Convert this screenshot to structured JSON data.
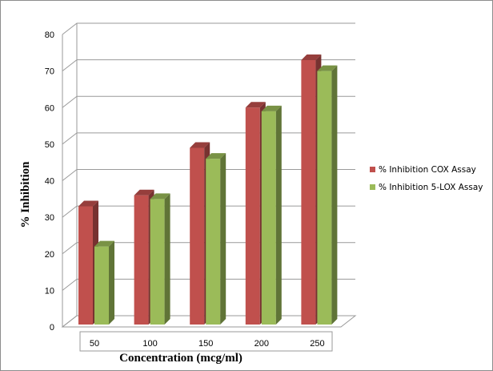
{
  "chart_data": {
    "type": "bar",
    "categories": [
      "50",
      "100",
      "150",
      "200",
      "250"
    ],
    "series": [
      {
        "name": "% Inhibition COX Assay",
        "values": [
          33,
          36,
          49,
          60,
          73
        ],
        "color": "#c0504d"
      },
      {
        "name": "% Inhibition 5-LOX Assay",
        "values": [
          22,
          35,
          46,
          59,
          70
        ],
        "color": "#9bbb59"
      }
    ],
    "xlabel": "Concentration (mcg/ml)",
    "ylabel": "% Inhibition",
    "ylim": [
      0,
      80
    ],
    "yticks": [
      "0",
      "10",
      "20",
      "30",
      "40",
      "50",
      "60",
      "70",
      "80"
    ],
    "grid": true,
    "legend_position": "right",
    "style": "3d-column"
  }
}
